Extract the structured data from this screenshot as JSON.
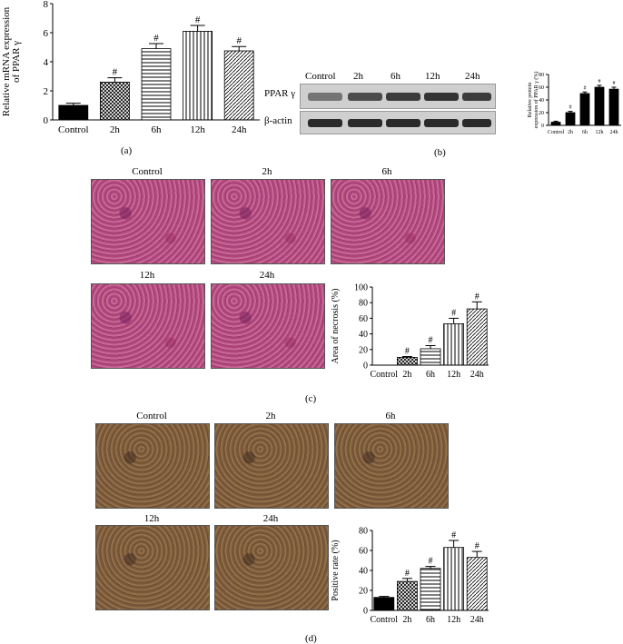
{
  "panel_labels": {
    "a": "(a)",
    "b": "(b)",
    "c": "(c)",
    "d": "(d)"
  },
  "blot": {
    "lanes": [
      "Control",
      "2h",
      "6h",
      "12h",
      "24h"
    ],
    "rows": [
      "PPAR γ",
      "β-actin"
    ]
  },
  "micro_c": {
    "labels": [
      "Control",
      "2h",
      "6h",
      "12h",
      "24h"
    ]
  },
  "micro_d": {
    "labels": [
      "Control",
      "2h",
      "6h",
      "12h",
      "24h"
    ]
  },
  "colors": {
    "bar_fill": "#000000",
    "axis": "#000000"
  },
  "chart_data": [
    {
      "id": "a",
      "type": "bar",
      "categories": [
        "Control",
        "2h",
        "6h",
        "12h",
        "24h"
      ],
      "values": [
        1.0,
        2.6,
        4.9,
        6.1,
        4.75
      ],
      "errors": [
        0.15,
        0.3,
        0.35,
        0.4,
        0.3
      ],
      "annotations": [
        "",
        "#",
        "#",
        "#",
        "#"
      ],
      "patterns": [
        "solid",
        "crosshatch",
        "hlines",
        "vlines",
        "diag"
      ],
      "ylabel_lines": [
        "Relative mRNA expression",
        "of PPAR γ"
      ],
      "ylim": [
        0,
        8
      ],
      "yticks": [
        0,
        2,
        4,
        6,
        8
      ]
    },
    {
      "id": "b",
      "type": "bar",
      "categories": [
        "Control",
        "2h",
        "6h",
        "12h",
        "24h"
      ],
      "values": [
        5,
        20,
        50,
        60,
        57
      ],
      "errors": [
        1.5,
        2,
        2.5,
        3,
        3
      ],
      "annotations": [
        "",
        "#",
        "#",
        "#",
        "#"
      ],
      "patterns": [
        "solid",
        "solid",
        "solid",
        "solid",
        "solid"
      ],
      "ylabel_lines": [
        "Relative protein",
        "expression of PPAR γ (%)"
      ],
      "ylim": [
        0,
        80
      ],
      "yticks": [
        0,
        20,
        40,
        60,
        80
      ]
    },
    {
      "id": "c",
      "type": "bar",
      "categories": [
        "Control",
        "2h",
        "6h",
        "12h",
        "24h"
      ],
      "values": [
        0,
        10,
        21,
        53,
        72
      ],
      "errors": [
        0,
        1,
        4,
        7,
        9
      ],
      "annotations": [
        "",
        "#",
        "#",
        "#",
        "#"
      ],
      "patterns": [
        "solid",
        "crosshatch",
        "hlines",
        "vlines",
        "diag"
      ],
      "ylabel_lines": [
        "Area of necrosis (%)"
      ],
      "ylim": [
        0,
        100
      ],
      "yticks": [
        0,
        20,
        40,
        60,
        80,
        100
      ]
    },
    {
      "id": "d",
      "type": "bar",
      "categories": [
        "Control",
        "2h",
        "6h",
        "12h",
        "24h"
      ],
      "values": [
        13,
        29,
        42,
        63,
        53
      ],
      "errors": [
        1,
        3,
        2,
        7,
        6
      ],
      "annotations": [
        "",
        "#",
        "#",
        "#",
        "#"
      ],
      "patterns": [
        "solid",
        "crosshatch",
        "hlines",
        "vlines",
        "diag"
      ],
      "ylabel_lines": [
        "Positive rate (%)"
      ],
      "ylim": [
        0,
        80
      ],
      "yticks": [
        0,
        20,
        40,
        60,
        80
      ]
    }
  ]
}
